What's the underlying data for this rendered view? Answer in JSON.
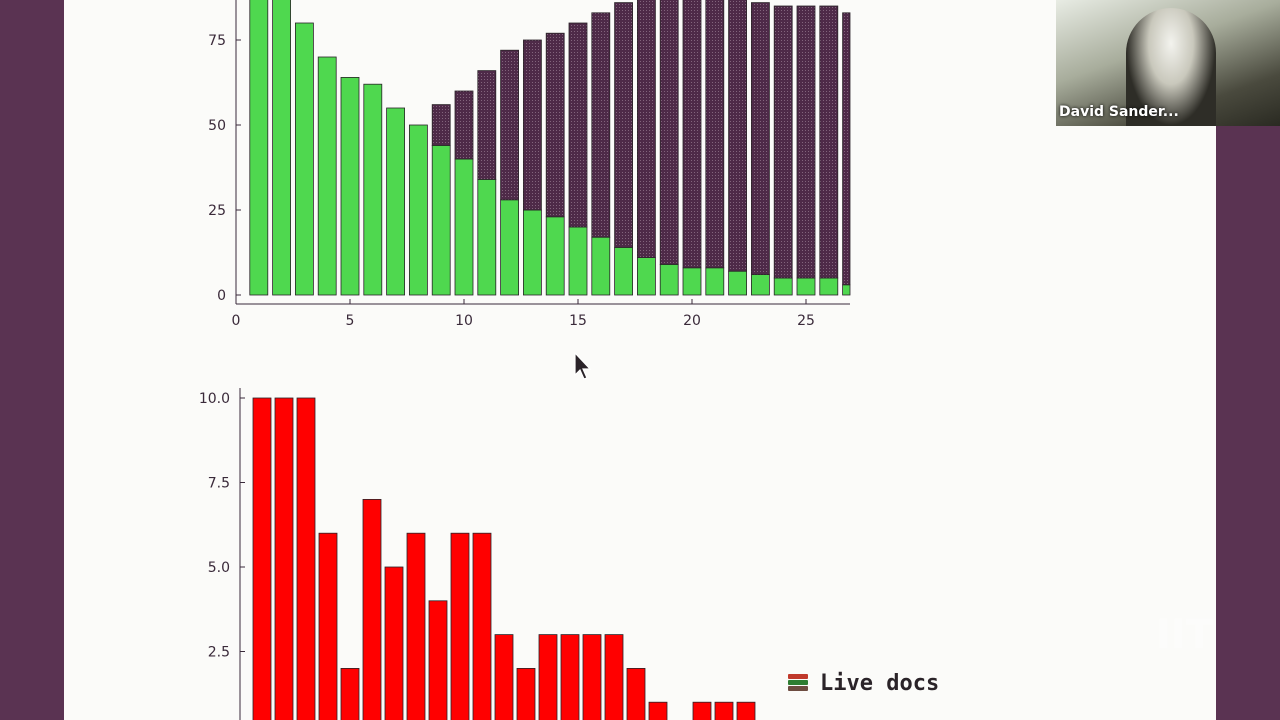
{
  "meeting": {
    "participant_name": "David Sander..."
  },
  "live_docs": {
    "label": "Live docs",
    "icon": "books-icon"
  },
  "chart_data": [
    {
      "type": "bar",
      "stacked": true,
      "x": [
        1,
        2,
        3,
        4,
        5,
        6,
        7,
        8,
        9,
        10,
        11,
        12,
        13,
        14,
        15,
        16,
        17,
        18,
        19,
        20,
        21,
        22,
        23,
        24,
        25,
        26,
        27
      ],
      "series": [
        {
          "color": "#4fd84f",
          "values": [
            88,
            88,
            80,
            70,
            64,
            62,
            55,
            50,
            44,
            40,
            34,
            28,
            25,
            23,
            20,
            17,
            14,
            11,
            9,
            8,
            8,
            7,
            6,
            5,
            5,
            5,
            3
          ]
        },
        {
          "color": "#4e2a48",
          "values": [
            0,
            0,
            0,
            0,
            0,
            0,
            0,
            0,
            12,
            20,
            32,
            44,
            50,
            54,
            60,
            66,
            72,
            80,
            80,
            80,
            80,
            80,
            80,
            80,
            80,
            80,
            80
          ]
        }
      ],
      "xlim": [
        0,
        27
      ],
      "ylim": [
        0,
        88
      ],
      "xticks": [
        "0",
        "5",
        "10",
        "15",
        "20",
        "25"
      ],
      "xtick_values": [
        0,
        5,
        10,
        15,
        20,
        25
      ],
      "yticks": [
        "0",
        "25",
        "50",
        "75"
      ],
      "ytick_values": [
        0,
        25,
        50,
        75
      ],
      "grid": false,
      "legend": "none"
    },
    {
      "type": "bar",
      "x": [
        1,
        2,
        3,
        4,
        5,
        6,
        7,
        8,
        9,
        10,
        11,
        12,
        13,
        14,
        15,
        16,
        17,
        18,
        19,
        20,
        21,
        22,
        23
      ],
      "values": [
        10,
        10,
        10,
        6,
        2,
        7,
        5,
        6,
        4,
        6,
        6,
        3,
        2,
        3,
        3,
        3,
        3,
        2,
        1,
        0,
        1,
        1,
        1
      ],
      "color": "#ff0000",
      "ylim": [
        0,
        10
      ],
      "yticks": [
        "2.5",
        "5.0",
        "7.5",
        "10.0"
      ],
      "ytick_values": [
        2.5,
        5.0,
        7.5,
        10.0
      ],
      "grid": false,
      "legend": "none"
    }
  ]
}
